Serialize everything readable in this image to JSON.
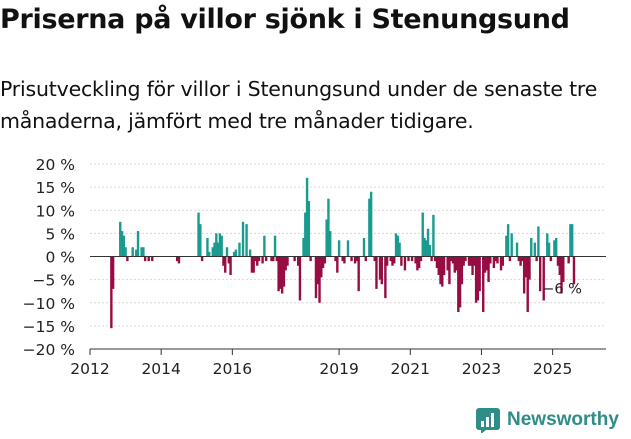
{
  "title": "Priserna på villor sjönk i Stenungsund",
  "subtitle": "Prisutveckling för villor i Stenungsund under de senaste tre månaderna, jämfört med tre månader tidigare.",
  "brand": {
    "name": "Newsworthy",
    "color": "#2f8d87"
  },
  "chart_data": {
    "type": "bar",
    "title": "Priserna på villor sjönk i Stenungsund",
    "ylabel": "",
    "xlabel": "",
    "ylim": [
      -20,
      20
    ],
    "yticks": [
      -20,
      -15,
      -10,
      -5,
      0,
      5,
      10,
      15,
      20
    ],
    "ytick_labels": [
      "−20 %",
      "−15 %",
      "−10 %",
      "−5 %",
      "0 %",
      "5 %",
      "10 %",
      "15 %",
      "20 %"
    ],
    "xlim": [
      2012,
      2026.5
    ],
    "xticks": [
      2012,
      2014,
      2016,
      2019,
      2021,
      2023,
      2025
    ],
    "xtick_labels": [
      "2012",
      "2014",
      "2016",
      "2019",
      "2021",
      "2023",
      "2025"
    ],
    "colors": {
      "positive": "#1a9b8f",
      "negative": "#980c44"
    },
    "annotation": {
      "label": "−6 %",
      "x": 2025.6,
      "y": -6
    },
    "series": [
      {
        "name": "Prisutveckling (%)",
        "x": [
          2012.6,
          2012.65,
          2012.85,
          2012.9,
          2012.95,
          2013.0,
          2013.05,
          2013.2,
          2013.3,
          2013.35,
          2013.45,
          2013.5,
          2013.55,
          2013.65,
          2013.75,
          2014.45,
          2014.5,
          2015.05,
          2015.1,
          2015.15,
          2015.3,
          2015.35,
          2015.45,
          2015.5,
          2015.55,
          2015.6,
          2015.65,
          2015.7,
          2015.75,
          2015.8,
          2015.85,
          2015.9,
          2015.95,
          2016.05,
          2016.1,
          2016.2,
          2016.3,
          2016.4,
          2016.5,
          2016.55,
          2016.6,
          2016.65,
          2016.7,
          2016.75,
          2016.85,
          2016.9,
          2016.95,
          2017.1,
          2017.15,
          2017.2,
          2017.25,
          2017.3,
          2017.35,
          2017.4,
          2017.45,
          2017.5,
          2017.55,
          2017.75,
          2017.85,
          2017.9,
          2018.0,
          2018.05,
          2018.1,
          2018.15,
          2018.2,
          2018.35,
          2018.4,
          2018.45,
          2018.5,
          2018.55,
          2018.6,
          2018.65,
          2018.7,
          2018.75,
          2018.9,
          2018.95,
          2019.0,
          2019.1,
          2019.15,
          2019.25,
          2019.35,
          2019.45,
          2019.5,
          2019.55,
          2019.7,
          2019.75,
          2019.85,
          2019.9,
          2020.0,
          2020.05,
          2020.15,
          2020.2,
          2020.3,
          2020.35,
          2020.45,
          2020.5,
          2020.55,
          2020.6,
          2020.65,
          2020.7,
          2020.75,
          2020.85,
          2020.95,
          2021.05,
          2021.15,
          2021.2,
          2021.25,
          2021.3,
          2021.35,
          2021.4,
          2021.45,
          2021.5,
          2021.55,
          2021.6,
          2021.65,
          2021.7,
          2021.75,
          2021.8,
          2021.85,
          2021.9,
          2021.95,
          2022.05,
          2022.1,
          2022.15,
          2022.2,
          2022.25,
          2022.3,
          2022.35,
          2022.4,
          2022.45,
          2022.5,
          2022.55,
          2022.65,
          2022.7,
          2022.75,
          2022.8,
          2022.85,
          2022.9,
          2022.95,
          2023.05,
          2023.1,
          2023.15,
          2023.2,
          2023.25,
          2023.35,
          2023.4,
          2023.45,
          2023.55,
          2023.6,
          2023.7,
          2023.75,
          2023.8,
          2023.85,
          2024.0,
          2024.05,
          2024.1,
          2024.15,
          2024.2,
          2024.25,
          2024.3,
          2024.35,
          2024.4,
          2024.5,
          2024.55,
          2024.6,
          2024.65,
          2024.75,
          2024.85,
          2024.9,
          2024.95,
          2025.05,
          2025.1,
          2025.15,
          2025.2,
          2025.25,
          2025.3,
          2025.45,
          2025.5,
          2025.55,
          2025.6
        ],
        "values": [
          -15.5,
          -7,
          7.5,
          5.5,
          4.5,
          2,
          -1,
          2,
          1.5,
          5.5,
          2,
          2,
          -1,
          -1,
          -1,
          -1,
          -1.5,
          9.5,
          7,
          -1,
          4,
          1,
          2,
          3,
          5,
          3,
          5,
          4.5,
          -2,
          -3.5,
          2,
          -1.5,
          -4,
          1,
          1.5,
          3,
          7.5,
          7,
          1.5,
          -3.5,
          -3.5,
          -1,
          -2,
          -1,
          -1.5,
          4.5,
          -1,
          -1,
          -1,
          4.5,
          -1,
          -7.5,
          -7,
          -8,
          -6.5,
          -3,
          -2,
          -1,
          -2,
          -9.5,
          4,
          9.5,
          17,
          12,
          -1,
          -9,
          -6,
          -10,
          -4.5,
          -2.5,
          -1.5,
          8,
          12.5,
          5.5,
          -1,
          -3.5,
          3.5,
          -1,
          -1.5,
          3.5,
          -1,
          -1.5,
          -1,
          -7.5,
          4,
          -1,
          12.5,
          14,
          -1,
          -7,
          -5,
          -6,
          -9,
          -2,
          -1,
          -2,
          -1.5,
          5,
          4.5,
          3,
          -2,
          -3,
          -1,
          -1,
          -1.5,
          -3,
          -2.5,
          -1,
          9.5,
          4,
          3.5,
          6,
          2.5,
          -1,
          9,
          -1,
          -2.5,
          -4,
          -6,
          -6.5,
          -4,
          -3,
          -6,
          -1,
          -1.5,
          -3.5,
          -3,
          -12,
          -11,
          -6,
          -2,
          -1,
          -2,
          -2,
          -4,
          -2,
          -10,
          -9.5,
          -7.5,
          -12,
          -3.5,
          -3,
          -5.5,
          -1.5,
          -2.5,
          -1,
          -1.5,
          -3,
          -2,
          4.5,
          7,
          -1,
          5,
          3,
          -1,
          -2,
          -1,
          -8,
          -4.5,
          -12,
          -5,
          4,
          3,
          -1,
          6.5,
          -7.5,
          -9.5,
          5,
          3,
          -1,
          3.5,
          4,
          -2,
          -4,
          -8,
          -5.5,
          -1.5,
          7,
          7,
          -6
        ]
      }
    ]
  }
}
